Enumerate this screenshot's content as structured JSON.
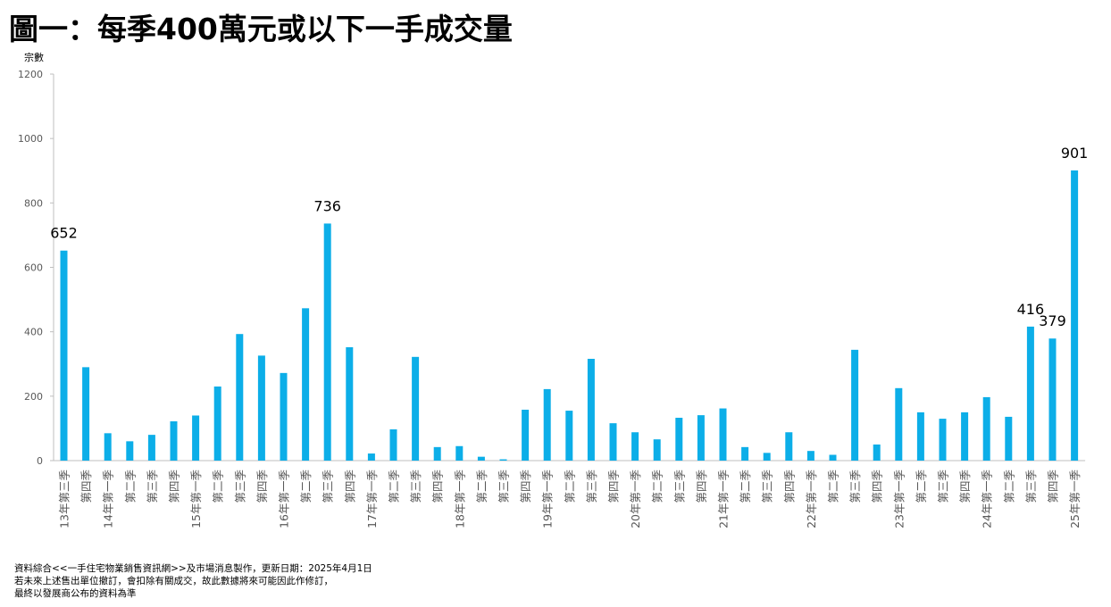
{
  "title": "圖一：每季400萬元或以下一手成交量",
  "footnotes": [
    "資料綜合<<一手住宅物業銷售資訊網>>及市場消息製作，更新日期：2025年4月1日",
    "若未來上述售出單位撤訂，會扣除有關成交，故此數據將來可能因此作修訂，",
    "最終以發展商公布的資料為準"
  ],
  "chart_data": {
    "type": "bar",
    "ylabel": "宗數",
    "ylim": [
      0,
      1200
    ],
    "yticks": [
      0,
      200,
      400,
      600,
      800,
      1000,
      1200
    ],
    "grid": false,
    "bar_color": "#0CAEE8",
    "categories": [
      "13年第三季",
      "第四季",
      "14年第一季",
      "第二季",
      "第三季",
      "第四季",
      "15年第一季",
      "第二季",
      "第三季",
      "第四季",
      "16年第一季",
      "第二季",
      "第三季",
      "第四季",
      "17年第一季",
      "第二季",
      "第三季",
      "第四季",
      "18年第一季",
      "第二季",
      "第三季",
      "第四季",
      "19年第一季",
      "第二季",
      "第三季",
      "第四季",
      "20年第一季",
      "第二季",
      "第三季",
      "第四季",
      "21年第一季",
      "第二季",
      "第三季",
      "第四季",
      "22年第一季",
      "第二季",
      "第三季",
      "第四季",
      "23年第一季",
      "第二季",
      "第三季",
      "第四季",
      "24年第一季",
      "第二季",
      "第三季",
      "第四季",
      "25年第一季"
    ],
    "values": [
      652,
      290,
      85,
      60,
      80,
      122,
      140,
      230,
      393,
      326,
      272,
      473,
      736,
      352,
      22,
      97,
      322,
      42,
      45,
      12,
      4,
      158,
      222,
      155,
      316,
      116,
      88,
      66,
      133,
      141,
      162,
      42,
      24,
      88,
      30,
      18,
      344,
      50,
      225,
      150,
      130,
      150,
      197,
      136,
      416,
      379,
      901
    ],
    "data_labels": [
      {
        "index": 0,
        "text": "652"
      },
      {
        "index": 12,
        "text": "736"
      },
      {
        "index": 44,
        "text": "416"
      },
      {
        "index": 45,
        "text": "379"
      },
      {
        "index": 46,
        "text": "901"
      }
    ]
  }
}
